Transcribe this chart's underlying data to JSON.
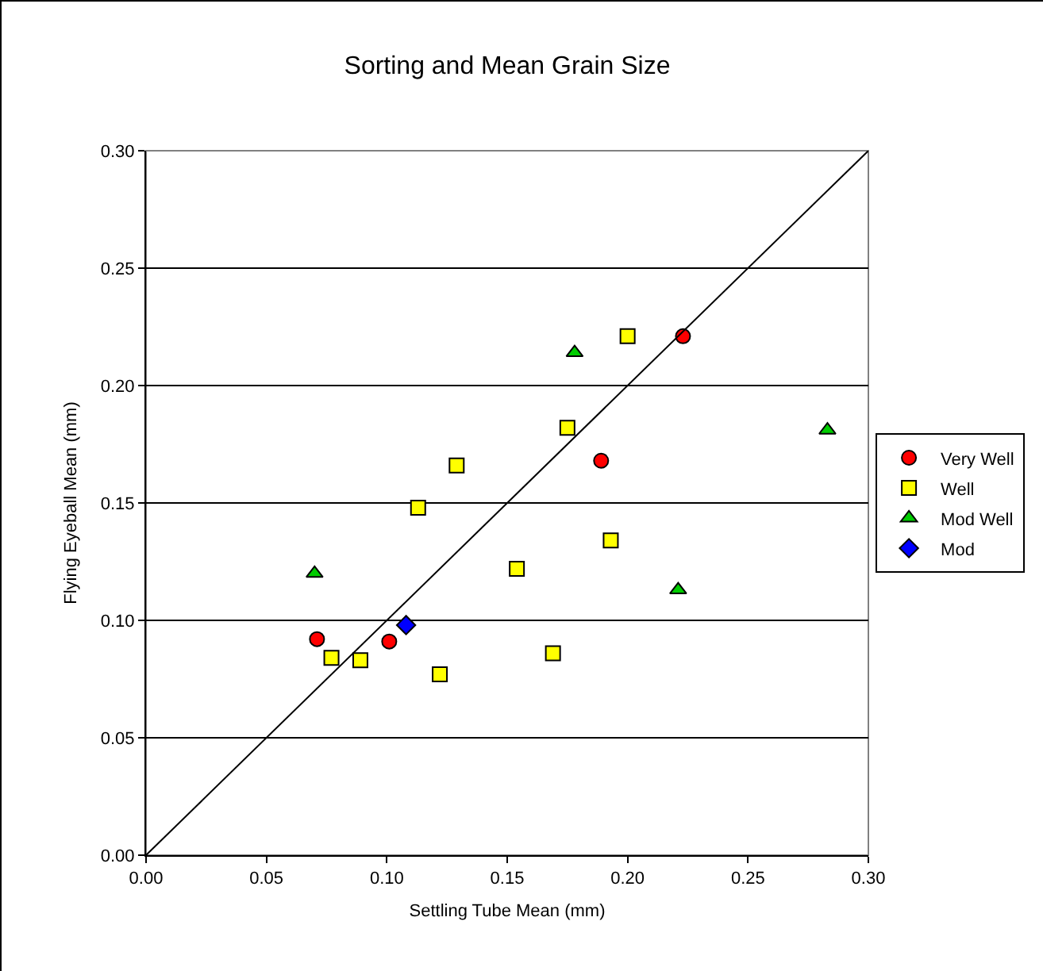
{
  "chart_data": {
    "type": "scatter",
    "title": "Sorting and Mean Grain Size",
    "xlabel": "Settling Tube Mean (mm)",
    "ylabel": "Flying Eyeball Mean (mm)",
    "xlim": [
      0,
      0.3
    ],
    "ylim": [
      0,
      0.3
    ],
    "xticks": [
      {
        "value": 0,
        "label": "0.00"
      },
      {
        "value": 0.05,
        "label": "0.05"
      },
      {
        "value": 0.1,
        "label": "0.10"
      },
      {
        "value": 0.15,
        "label": "0.15"
      },
      {
        "value": 0.2,
        "label": "0.20"
      },
      {
        "value": 0.25,
        "label": "0.25"
      },
      {
        "value": 0.3,
        "label": "0.30"
      }
    ],
    "yticks": [
      {
        "value": 0,
        "label": "0.00"
      },
      {
        "value": 0.05,
        "label": "0.05"
      },
      {
        "value": 0.1,
        "label": "0.10"
      },
      {
        "value": 0.15,
        "label": "0.15"
      },
      {
        "value": 0.2,
        "label": "0.20"
      },
      {
        "value": 0.25,
        "label": "0.25"
      },
      {
        "value": 0.3,
        "label": "0.30"
      }
    ],
    "grid": "y",
    "legend": "right",
    "series": [
      {
        "name": "Very Well",
        "color": "#ff0000",
        "marker": "circle",
        "x": [
          0.071,
          0.101,
          0.189,
          0.223
        ],
        "values": [
          0.092,
          0.091,
          0.168,
          0.221
        ]
      },
      {
        "name": "Well",
        "color": "#ffff00",
        "marker": "square",
        "x": [
          0.077,
          0.089,
          0.113,
          0.129,
          0.122,
          0.154,
          0.169,
          0.175,
          0.193,
          0.2
        ],
        "values": [
          0.084,
          0.083,
          0.148,
          0.166,
          0.077,
          0.122,
          0.086,
          0.182,
          0.134,
          0.221
        ]
      },
      {
        "name": "Mod Well",
        "color": "#00cc00",
        "marker": "triangle",
        "x": [
          0.07,
          0.178,
          0.221,
          0.283
        ],
        "values": [
          0.12,
          0.214,
          0.113,
          0.181
        ]
      },
      {
        "name": "Mod",
        "color": "#0000ff",
        "marker": "diamond",
        "x": [
          0.108
        ],
        "values": [
          0.098
        ]
      },
      {
        "type": "line",
        "color": "#000000",
        "marker": "none",
        "x": [
          0,
          0.3
        ],
        "values": [
          0,
          0.3
        ]
      }
    ]
  }
}
